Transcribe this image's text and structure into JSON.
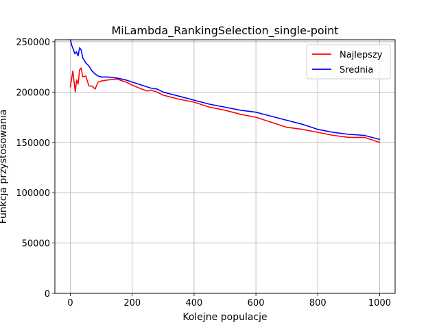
{
  "chart_data": {
    "type": "line",
    "title": "MiLambda_RankingSelection_single-point",
    "xlabel": "Kolejne populacje",
    "ylabel": "Funkcja przystosowania",
    "xlim": [
      -50,
      1050
    ],
    "ylim": [
      0,
      252000
    ],
    "xticks": [
      0,
      200,
      400,
      600,
      800,
      1000
    ],
    "xtick_labels": [
      "0",
      "200",
      "400",
      "600",
      "800",
      "1000"
    ],
    "yticks": [
      0,
      50000,
      100000,
      150000,
      200000,
      250000
    ],
    "ytick_labels": [
      "0",
      "50000",
      "100000",
      "150000",
      "200000",
      "250000"
    ],
    "grid": true,
    "legend_position": "top-right",
    "series": [
      {
        "name": "Najlepszy",
        "color": "#ff0000",
        "x": [
          0,
          5,
          8,
          12,
          16,
          20,
          25,
          30,
          35,
          40,
          50,
          60,
          70,
          80,
          90,
          100,
          120,
          150,
          180,
          200,
          230,
          250,
          260,
          280,
          300,
          350,
          400,
          450,
          500,
          550,
          600,
          650,
          700,
          750,
          800,
          850,
          900,
          950,
          1000
        ],
        "values": [
          205000,
          215000,
          221000,
          210000,
          200000,
          212000,
          208000,
          222000,
          224000,
          215000,
          216000,
          206000,
          206000,
          203000,
          210000,
          211000,
          212000,
          213000,
          210000,
          207000,
          203000,
          201000,
          202000,
          200000,
          197000,
          193000,
          190000,
          185000,
          182000,
          178000,
          175000,
          170000,
          165000,
          163000,
          160000,
          157000,
          155000,
          155000,
          150000
        ]
      },
      {
        "name": "Srednia",
        "color": "#0000ff",
        "x": [
          0,
          5,
          10,
          15,
          20,
          25,
          30,
          35,
          40,
          50,
          60,
          70,
          80,
          90,
          100,
          120,
          150,
          180,
          200,
          230,
          260,
          280,
          300,
          350,
          400,
          450,
          500,
          550,
          600,
          650,
          700,
          750,
          800,
          850,
          900,
          950,
          1000
        ],
        "values": [
          252000,
          246000,
          242000,
          238000,
          240000,
          236000,
          244000,
          242000,
          234000,
          229000,
          226000,
          221000,
          218000,
          216000,
          215000,
          215000,
          214000,
          212000,
          210000,
          207000,
          204000,
          203000,
          200000,
          196000,
          192000,
          188000,
          185000,
          182000,
          180000,
          176000,
          172000,
          168000,
          163000,
          160000,
          158000,
          157000,
          153000
        ]
      }
    ]
  }
}
